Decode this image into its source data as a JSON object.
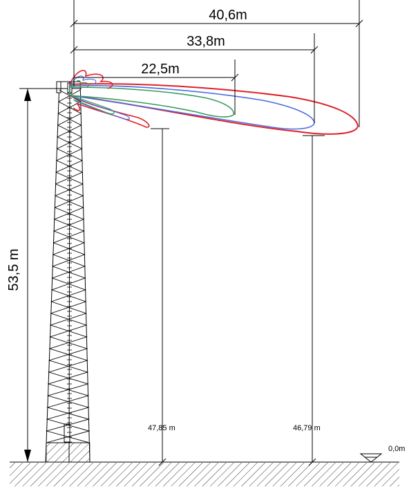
{
  "dimensions": {
    "range_red": "40,6m",
    "range_blue": "33,8m",
    "range_green": "22,5m",
    "tower_height": "53,5 m",
    "height_point_1": "47,85 m",
    "height_point_2": "46,79 m",
    "ground_level": "0,0m"
  },
  "colors": {
    "red_lobe": "#e0202a",
    "blue_lobe": "#4a6fe0",
    "green_lobe": "#3a9a5a",
    "structure": "#000000"
  }
}
